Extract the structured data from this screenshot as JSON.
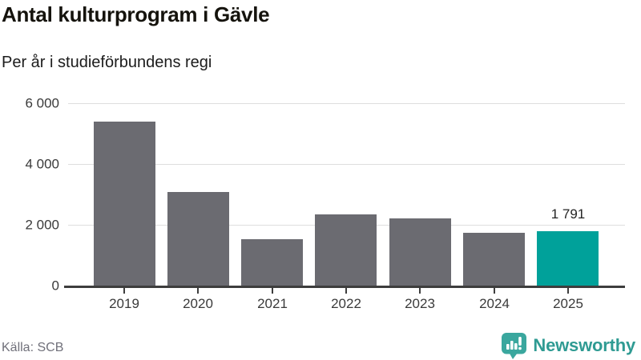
{
  "header": {
    "title": "Antal kulturprogram i Gävle",
    "subtitle": "Per år i studieförbundens regi"
  },
  "chart_data": {
    "type": "bar",
    "categories": [
      "2019",
      "2020",
      "2021",
      "2022",
      "2023",
      "2024",
      "2025"
    ],
    "values": [
      5400,
      3070,
      1520,
      2340,
      2200,
      1740,
      1791
    ],
    "highlight_index": 6,
    "highlight_value_label": "1 791",
    "title": "Antal kulturprogram i Gävle",
    "subtitle": "Per år i studieförbundens regi",
    "xlabel": "",
    "ylabel": "",
    "ylim": [
      0,
      6000
    ],
    "yticks": [
      0,
      2000,
      4000,
      6000
    ],
    "ytick_labels": [
      "0",
      "2 000",
      "4 000",
      "6 000"
    ],
    "grid": true,
    "legend": false,
    "bar_color": "#6b6b71",
    "highlight_color": "#00a19a"
  },
  "footer": {
    "source": "Källa: SCB",
    "brand": "Newsworthy"
  },
  "colors": {
    "axis": "#3d3d3d",
    "gridline": "#dedede",
    "tick_text": "#3a3a3a",
    "brand_teal": "#2f9b93",
    "logo_teal": "#3aa79e"
  }
}
